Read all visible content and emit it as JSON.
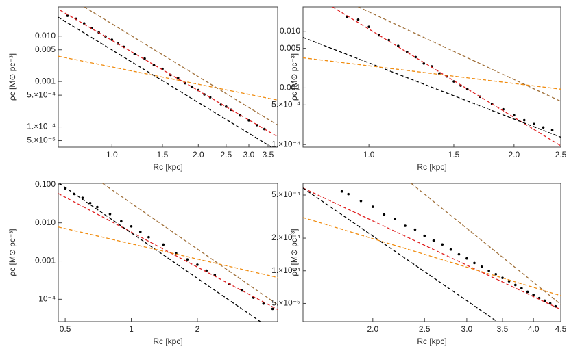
{
  "chart_data": [
    {
      "type": "scatter",
      "xlabel": "Rc [kpc]",
      "ylabel": "ρc [M⊙ pc⁻³]",
      "log_x": true,
      "log_y": true,
      "xlim": [
        0.65,
        3.78
      ],
      "ylim": [
        3.6e-05,
        0.044
      ],
      "xticks": [
        {
          "value": 1,
          "label": "1.0"
        },
        1.5,
        {
          "value": 2,
          "label": "2.0"
        },
        2.5,
        {
          "value": 3,
          "label": "3.0"
        },
        3.5
      ],
      "yticks": [
        {
          "value": 0.01,
          "label": "0.010"
        },
        0.005,
        0.001,
        {
          "value": 0.0005,
          "label": "5.×10⁻⁴"
        },
        {
          "value": 0.0001,
          "label": "1.×10⁻⁴"
        },
        {
          "value": 5e-05,
          "label": "5.×10⁻⁵"
        }
      ],
      "series": [
        {
          "mode": "markers",
          "color": "#000000",
          "x": [
            0.7,
            0.75,
            0.8,
            0.85,
            0.9,
            0.95,
            1.0,
            1.05,
            1.1,
            1.2,
            1.3,
            1.4,
            1.5,
            1.6,
            1.7,
            1.8,
            1.9,
            2.0,
            2.1,
            2.2,
            2.4,
            2.5,
            2.6,
            2.8,
            3.0,
            3.2,
            3.4
          ],
          "values": [
            0.028,
            0.024,
            0.019,
            0.015,
            0.012,
            0.0098,
            0.0083,
            0.0068,
            0.0058,
            0.004,
            0.0032,
            0.0023,
            0.0019,
            0.0014,
            0.0012,
            0.00092,
            0.00077,
            0.00065,
            0.00052,
            0.00045,
            0.00031,
            0.00028,
            0.00024,
            0.00018,
            0.00014,
            0.00011,
            9e-05
          ]
        },
        {
          "mode": "line",
          "dashed": true,
          "color": "#e02020",
          "x": [
            0.66,
            3.78
          ],
          "values": [
            0.037,
            6.1e-05
          ]
        },
        {
          "mode": "line",
          "dashed": true,
          "color": "#000000",
          "x": [
            0.65,
            3.6
          ],
          "values": [
            0.026,
            3.6e-05
          ]
        },
        {
          "mode": "line",
          "dashed": true,
          "color": "#a0703a",
          "x": [
            0.8,
            3.78
          ],
          "values": [
            0.044,
            0.00011
          ]
        },
        {
          "mode": "line",
          "dashed": true,
          "color": "#f08c10",
          "x": [
            0.65,
            3.78
          ],
          "values": [
            0.0036,
            0.00039
          ]
        }
      ]
    },
    {
      "type": "scatter",
      "xlabel": "Rc [kpc]",
      "ylabel": "ρc [M⊙ pc⁻³]",
      "log_x": true,
      "log_y": true,
      "xlim": [
        0.73,
        2.5
      ],
      "ylim": [
        9e-05,
        0.027
      ],
      "xticks": [
        {
          "value": 1,
          "label": "1.0"
        },
        1.5,
        {
          "value": 2,
          "label": "2.0"
        },
        2.5
      ],
      "yticks": [
        {
          "value": 0.01,
          "label": "0.010"
        },
        0.005,
        0.001,
        {
          "value": 0.0005,
          "label": "5.×10⁻⁴"
        },
        {
          "value": 0.0001,
          "label": "1.×10⁻⁴"
        }
      ],
      "series": [
        {
          "mode": "markers",
          "color": "#000000",
          "x": [
            0.9,
            0.95,
            1.0,
            1.05,
            1.1,
            1.15,
            1.2,
            1.25,
            1.3,
            1.35,
            1.4,
            1.45,
            1.5,
            1.55,
            1.6,
            1.7,
            1.8,
            1.9,
            2.0,
            2.1,
            2.2,
            2.3,
            2.4
          ],
          "values": [
            0.018,
            0.016,
            0.012,
            0.0085,
            0.007,
            0.0055,
            0.0043,
            0.0035,
            0.0027,
            0.0024,
            0.0018,
            0.0016,
            0.0013,
            0.0011,
            0.00095,
            0.0007,
            0.00052,
            0.00042,
            0.00033,
            0.00027,
            0.00023,
            0.0002,
            0.00018
          ]
        },
        {
          "mode": "line",
          "dashed": true,
          "color": "#e02020",
          "x": [
            0.84,
            2.5
          ],
          "values": [
            0.027,
            9.5e-05
          ]
        },
        {
          "mode": "line",
          "dashed": true,
          "color": "#000000",
          "x": [
            0.73,
            2.5
          ],
          "values": [
            0.0078,
            0.000135
          ]
        },
        {
          "mode": "line",
          "dashed": true,
          "color": "#a0703a",
          "x": [
            0.95,
            2.5
          ],
          "values": [
            0.027,
            0.00058
          ]
        },
        {
          "mode": "line",
          "dashed": true,
          "color": "#f08c10",
          "x": [
            0.73,
            2.5
          ],
          "values": [
            0.0034,
            0.00095
          ]
        }
      ]
    },
    {
      "type": "scatter",
      "xlabel": "Rc [kpc]",
      "ylabel": "ρc [M⊙ pc⁻³]",
      "log_x": true,
      "log_y": true,
      "xlim": [
        0.465,
        4.64
      ],
      "ylim": [
        2.6e-05,
        0.108
      ],
      "xticks": [
        0.5,
        1,
        2
      ],
      "yticks": [
        {
          "value": 0.1,
          "label": "0.100"
        },
        {
          "value": 0.01,
          "label": "0.010"
        },
        0.001,
        {
          "value": 0.0001,
          "label": "10⁻⁴"
        }
      ],
      "series": [
        {
          "mode": "markers",
          "color": "#000000",
          "x": [
            0.5,
            0.55,
            0.6,
            0.65,
            0.7,
            0.8,
            0.9,
            1.0,
            1.1,
            1.2,
            1.4,
            1.6,
            1.8,
            2.0,
            2.2,
            2.4,
            2.8,
            3.2,
            3.6,
            4.0,
            4.4
          ],
          "values": [
            0.08,
            0.057,
            0.045,
            0.033,
            0.026,
            0.017,
            0.011,
            0.0081,
            0.0058,
            0.0042,
            0.0027,
            0.0016,
            0.0011,
            0.0008,
            0.00056,
            0.00043,
            0.00025,
            0.00017,
            0.00011,
            7.7e-05,
            5.6e-05
          ]
        },
        {
          "mode": "line",
          "dashed": true,
          "color": "#e02020",
          "x": [
            0.465,
            4.64
          ],
          "values": [
            0.0586,
            5.4e-05
          ]
        },
        {
          "mode": "line",
          "dashed": true,
          "color": "#000000",
          "x": [
            0.47,
            3.87
          ],
          "values": [
            0.108,
            2.6e-05
          ]
        },
        {
          "mode": "line",
          "dashed": true,
          "color": "#a0703a",
          "x": [
            0.74,
            4.64
          ],
          "values": [
            0.108,
            7.2e-05
          ]
        },
        {
          "mode": "line",
          "dashed": true,
          "color": "#f08c10",
          "x": [
            0.465,
            4.64
          ],
          "values": [
            0.0078,
            0.00037
          ]
        }
      ]
    },
    {
      "type": "scatter",
      "xlabel": "Rc [kpc]",
      "ylabel": "ρc [M⊙ pc⁻³]",
      "log_x": true,
      "log_y": true,
      "xlim": [
        1.48,
        4.5
      ],
      "ylim": [
        3.4e-05,
        0.00064
      ],
      "xticks": [
        {
          "value": 2,
          "label": "2.0"
        },
        2.5,
        {
          "value": 3,
          "label": "3.0"
        },
        3.5,
        {
          "value": 4,
          "label": "4.0"
        },
        4.5
      ],
      "yticks": [
        {
          "value": 0.0005,
          "label": "5.×10⁻⁴"
        },
        {
          "value": 0.0002,
          "label": "2.×10⁻⁴"
        },
        {
          "value": 0.0001,
          "label": "1.×10⁻⁴"
        },
        {
          "value": 5e-05,
          "label": "5.×10⁻⁵"
        }
      ],
      "series": [
        {
          "mode": "markers",
          "color": "#000000",
          "x": [
            1.75,
            1.8,
            1.9,
            2.0,
            2.1,
            2.2,
            2.3,
            2.4,
            2.5,
            2.6,
            2.7,
            2.8,
            2.9,
            3.0,
            3.1,
            3.2,
            3.3,
            3.4,
            3.5,
            3.6,
            3.7,
            3.8,
            3.9,
            4.0,
            4.1,
            4.2,
            4.3,
            4.4
          ],
          "values": [
            0.00054,
            0.00051,
            0.00044,
            0.00039,
            0.00033,
            0.0003,
            0.00026,
            0.00024,
            0.00021,
            0.00019,
            0.000175,
            0.000157,
            0.000142,
            0.00013,
            0.000118,
            0.000109,
            0.0001,
            9.3e-05,
            8.6e-05,
            8e-05,
            7.4e-05,
            6.9e-05,
            6.4e-05,
            6e-05,
            5.6e-05,
            5.3e-05,
            5e-05,
            4.7e-05
          ]
        },
        {
          "mode": "line",
          "dashed": true,
          "color": "#e02020",
          "x": [
            1.48,
            4.5
          ],
          "values": [
            0.00058,
            4.4e-05
          ]
        },
        {
          "mode": "line",
          "dashed": true,
          "color": "#000000",
          "x": [
            1.48,
            3.42
          ],
          "values": [
            0.00058,
            3.4e-05
          ]
        },
        {
          "mode": "line",
          "dashed": true,
          "color": "#a0703a",
          "x": [
            2.36,
            4.5
          ],
          "values": [
            0.00064,
            4.9e-05
          ]
        },
        {
          "mode": "line",
          "dashed": true,
          "color": "#f08c10",
          "x": [
            1.48,
            4.5
          ],
          "values": [
            0.00031,
            5.9e-05
          ]
        }
      ]
    }
  ]
}
